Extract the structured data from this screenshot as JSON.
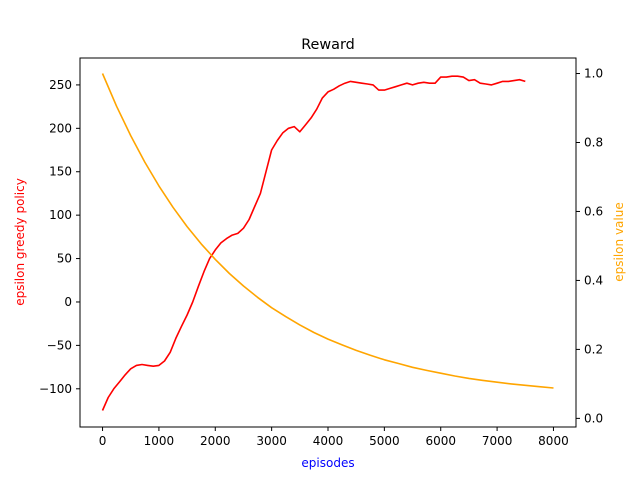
{
  "chart_data": {
    "type": "line",
    "title": "Reward",
    "xlabel": "episodes",
    "ylabel_left": "epsilon greedy policy",
    "ylabel_right": "epsilon value",
    "xlim": [
      -400,
      8400
    ],
    "ylim_left": [
      -144,
      281
    ],
    "ylim_right": [
      -0.025,
      1.045
    ],
    "xticks": [
      0,
      1000,
      2000,
      3000,
      4000,
      5000,
      6000,
      7000,
      8000
    ],
    "yticks_left": [
      -100,
      -50,
      0,
      50,
      100,
      150,
      200,
      250
    ],
    "yticks_right": [
      0.0,
      0.2,
      0.4,
      0.6,
      0.8,
      1.0
    ],
    "xticks_labels": [
      "0",
      "1000",
      "2000",
      "3000",
      "4000",
      "5000",
      "6000",
      "7000",
      "8000"
    ],
    "yticks_left_labels": [
      "−100",
      "−50",
      "0",
      "50",
      "100",
      "150",
      "200",
      "250"
    ],
    "yticks_right_labels": [
      "0.0",
      "0.2",
      "0.4",
      "0.6",
      "0.8",
      "1.0"
    ],
    "grid": false,
    "colors": {
      "reward": "#ff0000",
      "epsilon": "#ffa500",
      "xlabel": "#0000ff",
      "ylabel_left": "#ff0000",
      "ylabel_right": "#ffa500"
    },
    "series": [
      {
        "axis": "left",
        "color": "#ff0000",
        "x": [
          0,
          100,
          200,
          300,
          400,
          500,
          600,
          700,
          800,
          900,
          1000,
          1100,
          1200,
          1300,
          1400,
          1500,
          1600,
          1700,
          1800,
          1900,
          2000,
          2100,
          2200,
          2300,
          2400,
          2500,
          2600,
          2700,
          2800,
          2900,
          3000,
          3100,
          3200,
          3300,
          3400,
          3500,
          3600,
          3700,
          3800,
          3900,
          4000,
          4100,
          4200,
          4300,
          4400,
          4500,
          4600,
          4700,
          4800,
          4900,
          5000,
          5100,
          5200,
          5300,
          5400,
          5500,
          5600,
          5700,
          5800,
          5900,
          6000,
          6100,
          6200,
          6300,
          6400,
          6500,
          6600,
          6700,
          6800,
          6900,
          7000,
          7100,
          7200,
          7300,
          7400,
          7500
        ],
        "values": [
          -125,
          -110,
          -100,
          -92,
          -84,
          -77,
          -73,
          -72,
          -73,
          -74,
          -73,
          -68,
          -58,
          -42,
          -28,
          -15,
          0,
          18,
          35,
          50,
          60,
          68,
          73,
          77,
          79,
          85,
          95,
          110,
          125,
          150,
          175,
          186,
          195,
          200,
          202,
          196,
          204,
          212,
          222,
          235,
          242,
          245,
          249,
          252,
          254,
          253,
          252,
          251,
          250,
          244,
          244,
          246,
          248,
          250,
          252,
          250,
          252,
          253,
          252,
          252,
          259,
          259,
          260,
          260,
          259,
          255,
          256,
          252,
          251,
          250,
          252,
          254,
          254,
          255,
          256,
          254
        ]
      },
      {
        "axis": "right",
        "color": "#ffa500",
        "x": [
          0,
          250,
          500,
          750,
          1000,
          1250,
          1500,
          1750,
          2000,
          2250,
          2500,
          2750,
          3000,
          3250,
          3500,
          3750,
          4000,
          4250,
          4500,
          4750,
          5000,
          5250,
          5500,
          5750,
          6000,
          6250,
          6500,
          6750,
          7000,
          7250,
          7500,
          7750,
          8000
        ],
        "values": [
          1.0,
          0.905,
          0.82,
          0.743,
          0.674,
          0.612,
          0.556,
          0.506,
          0.461,
          0.42,
          0.384,
          0.351,
          0.321,
          0.295,
          0.271,
          0.249,
          0.23,
          0.213,
          0.197,
          0.183,
          0.17,
          0.159,
          0.148,
          0.139,
          0.131,
          0.123,
          0.116,
          0.11,
          0.105,
          0.1,
          0.096,
          0.092,
          0.088
        ]
      }
    ]
  }
}
